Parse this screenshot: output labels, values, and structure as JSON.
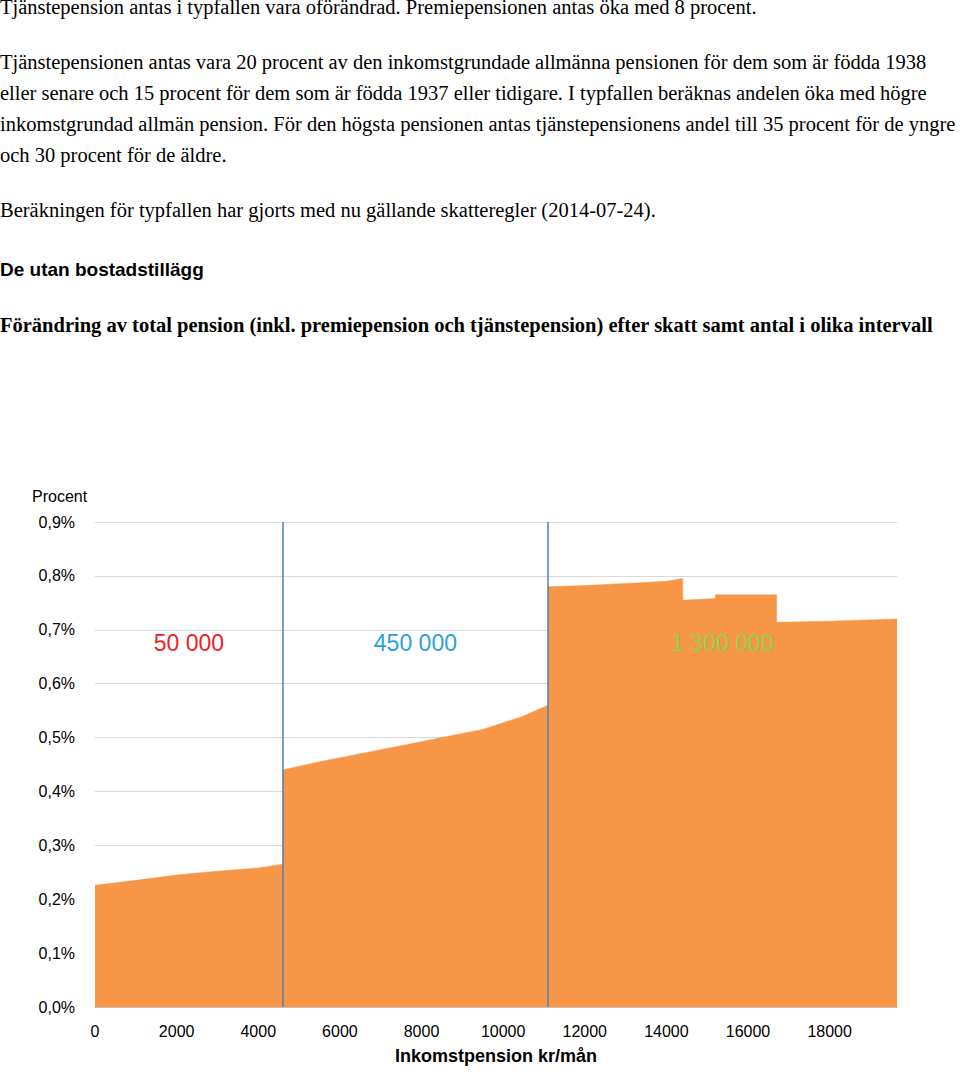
{
  "document": {
    "paragraphs": [
      "Tjänstepension antas i typfallen vara oförändrad. Premiepensionen antas öka med 8 procent.",
      "Tjänstepensionen antas vara 20 procent av den inkomstgrundade allmänna pensionen för dem som är födda 1938 eller senare och 15 procent för dem som är födda 1937 eller tidigare. I typfallen beräknas andelen öka med högre inkomstgrundad allmän pension. För den högsta pensionen antas tjänstepensionens andel till 35 procent för de yngre och 30 procent för de äldre.",
      "Beräkningen för typfallen har gjorts med nu gällande skatteregler (2014-07-24)."
    ],
    "heading": "De utan bostadstillägg"
  },
  "chart_data": {
    "type": "area",
    "title": "Förändring av total pension (inkl. premiepension och tjänstepension) efter skatt samt antal i olika intervall",
    "y_label": "Procent",
    "x_label": "Inkomstpension kr/mån",
    "x": [
      0,
      1000,
      2000,
      3000,
      4000,
      4600,
      4600,
      5500,
      6500,
      7500,
      8500,
      9500,
      10500,
      11100,
      11100,
      12000,
      13000,
      14000,
      14400,
      14400,
      15200,
      15200,
      16700,
      16700,
      18000,
      19650
    ],
    "values": [
      0.226,
      0.235,
      0.245,
      0.252,
      0.258,
      0.265,
      0.44,
      0.455,
      0.47,
      0.485,
      0.5,
      0.515,
      0.54,
      0.56,
      0.78,
      0.782,
      0.786,
      0.79,
      0.795,
      0.755,
      0.758,
      0.765,
      0.765,
      0.714,
      0.716,
      0.72
    ],
    "color": "#f79646",
    "xlim": [
      0,
      19650
    ],
    "xticks": [
      0,
      2000,
      4000,
      6000,
      8000,
      10000,
      12000,
      14000,
      16000,
      18000
    ],
    "ylim": [
      0,
      0.9
    ],
    "yticks": [
      {
        "value": 0,
        "label": "0,0%"
      },
      {
        "value": 0.1,
        "label": "0,1%"
      },
      {
        "value": 0.2,
        "label": "0,2%"
      },
      {
        "value": 0.3,
        "label": "0,3%"
      },
      {
        "value": 0.4,
        "label": "0,4%"
      },
      {
        "value": 0.5,
        "label": "0,5%"
      },
      {
        "value": 0.6,
        "label": "0,6%"
      },
      {
        "value": 0.7,
        "label": "0,7%"
      },
      {
        "value": 0.8,
        "label": "0,8%"
      },
      {
        "value": 0.9,
        "label": "0,9%"
      }
    ],
    "grid": true,
    "dividers": [
      4600,
      11100
    ],
    "annotations": [
      {
        "text": "50 000",
        "color": "#e8251f"
      },
      {
        "text": "450 000",
        "color": "#2e9fd8"
      },
      {
        "text": "1 300 000",
        "color": "#92d050"
      }
    ]
  }
}
